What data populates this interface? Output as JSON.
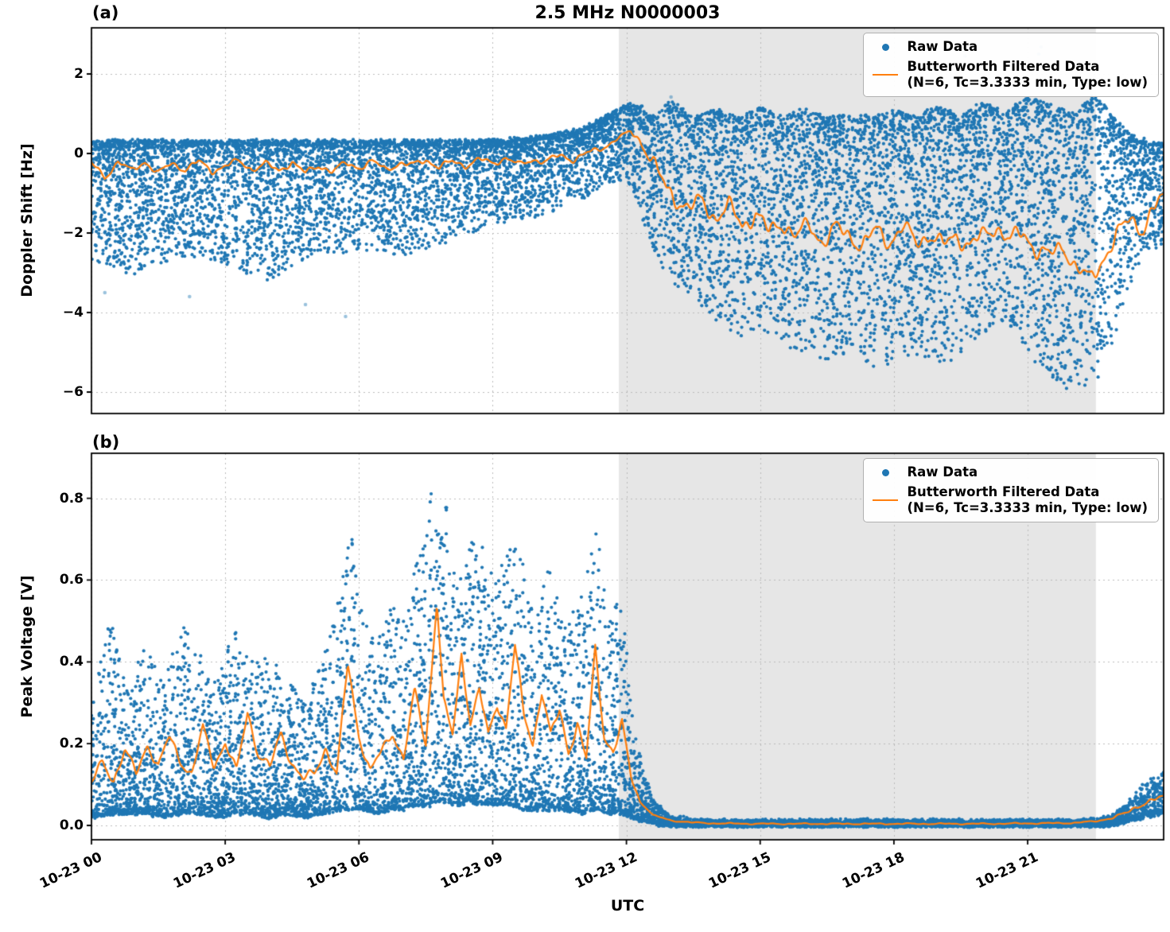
{
  "figure": {
    "title": "2.5 MHz N0000003",
    "panel_a_label": "(a)",
    "panel_b_label": "(b)",
    "panel_a_ylabel": "Doppler Shift [Hz]",
    "panel_b_ylabel": "Peak Voltage [V]",
    "xlabel": "UTC"
  },
  "legend": {
    "raw_label": "Raw Data",
    "filtered_line1": "Butterworth Filtered Data",
    "filtered_line2": "(N=6, Tc=3.3333 min, Type: low)"
  },
  "colors": {
    "raw": "#1f77b4",
    "filtered": "#ff7f0e",
    "shade": "#e6e6e6",
    "grid": "#bbbbbb",
    "spine": "#000000"
  },
  "chart_data": [
    {
      "id": "a",
      "type": "scatter",
      "title": "2.5 MHz N0000003",
      "ylabel": "Doppler Shift [Hz]",
      "xlabel": "UTC",
      "legend_entries": [
        "Raw Data",
        "Butterworth Filtered Data (N=6, Tc=3.3333 min, Type: low)"
      ],
      "xlim_hours": [
        0,
        24.05
      ],
      "ylim": [
        -6.54,
        3.16
      ],
      "grid": "dotted",
      "shade_hours": [
        11.83,
        22.53
      ],
      "xticks": [
        {
          "hour": 0,
          "label": "10-23 00"
        },
        {
          "hour": 3,
          "label": "10-23 03"
        },
        {
          "hour": 6,
          "label": "10-23 06"
        },
        {
          "hour": 9,
          "label": "10-23 09"
        },
        {
          "hour": 12,
          "label": "10-23 12"
        },
        {
          "hour": 15,
          "label": "10-23 15"
        },
        {
          "hour": 18,
          "label": "10-23 18"
        },
        {
          "hour": 21,
          "label": "10-23 21"
        }
      ],
      "yticks": [
        {
          "value": 2,
          "label": "2"
        },
        {
          "value": 0,
          "label": "0"
        },
        {
          "value": -2,
          "label": "−2"
        },
        {
          "value": -4,
          "label": "−4"
        },
        {
          "value": -6,
          "label": "−6"
        }
      ],
      "raw_envelope": {
        "t": [
          0,
          1,
          2,
          3,
          4,
          5,
          6,
          7,
          8,
          9,
          10,
          11,
          11.5,
          12.0,
          12.3,
          12.6,
          13.0,
          13.5,
          14.0,
          14.5,
          15.0,
          15.5,
          16.0,
          16.5,
          17.0,
          17.5,
          18.0,
          18.5,
          19.0,
          19.5,
          20.0,
          20.5,
          21.0,
          21.5,
          22.0,
          22.5,
          23.0,
          23.4,
          23.7,
          24.05
        ],
        "hi": [
          0.3,
          0.3,
          0.3,
          0.3,
          0.3,
          0.3,
          0.3,
          0.3,
          0.3,
          0.3,
          0.4,
          0.6,
          0.9,
          1.2,
          1.2,
          0.9,
          1.3,
          0.9,
          1.1,
          0.9,
          1.2,
          0.9,
          1.1,
          0.9,
          1.0,
          0.9,
          1.1,
          0.9,
          1.2,
          0.9,
          1.3,
          1.0,
          1.4,
          1.2,
          1.0,
          1.5,
          0.8,
          0.4,
          0.3,
          0.2
        ],
        "lo": [
          -2.8,
          -3.0,
          -2.6,
          -2.8,
          -3.2,
          -2.6,
          -2.4,
          -2.6,
          -2.2,
          -1.8,
          -1.6,
          -1.2,
          -0.8,
          -0.6,
          -1.5,
          -2.5,
          -3.2,
          -3.6,
          -4.2,
          -4.6,
          -4.4,
          -4.8,
          -5.0,
          -5.2,
          -5.0,
          -5.4,
          -5.2,
          -5.0,
          -5.3,
          -5.1,
          -4.6,
          -4.2,
          -5.0,
          -5.6,
          -6.0,
          -5.8,
          -4.5,
          -3.0,
          -2.5,
          -2.2
        ]
      },
      "scatter": {
        "n": 11000,
        "seed": 1337,
        "dense_edge": "hi",
        "skew_day": 2.0,
        "skew_night": 1.55,
        "skew_change_hour": 11.6,
        "jitter": 0.12
      },
      "outliers": [
        [
          5.7,
          -4.1
        ],
        [
          2.2,
          -3.6
        ],
        [
          4.8,
          -3.8
        ],
        [
          0.3,
          -3.5
        ],
        [
          13.0,
          1.42
        ],
        [
          19.55,
          2.62
        ],
        [
          19.6,
          2.45
        ],
        [
          21.3,
          2.68
        ],
        [
          21.25,
          2.5
        ]
      ],
      "filtered": {
        "t": [
          0,
          0.3,
          0.6,
          0.9,
          1.2,
          1.5,
          1.8,
          2.1,
          2.4,
          2.7,
          3.0,
          3.3,
          3.6,
          3.9,
          4.2,
          4.5,
          4.8,
          5.1,
          5.4,
          5.7,
          6.0,
          6.3,
          6.6,
          6.9,
          7.2,
          7.5,
          7.8,
          8.1,
          8.4,
          8.7,
          9.0,
          9.3,
          9.6,
          9.9,
          10.2,
          10.5,
          10.8,
          11.1,
          11.4,
          11.7,
          11.9,
          12.1,
          12.3,
          12.5,
          12.7,
          12.9,
          13.1,
          13.4,
          13.7,
          14.0,
          14.3,
          14.6,
          14.9,
          15.2,
          15.5,
          15.8,
          16.1,
          16.4,
          16.7,
          17.0,
          17.3,
          17.6,
          17.9,
          18.2,
          18.5,
          18.8,
          19.1,
          19.4,
          19.7,
          20.0,
          20.3,
          20.6,
          20.9,
          21.2,
          21.5,
          21.8,
          22.1,
          22.4,
          22.7,
          23.0,
          23.3,
          23.6,
          23.9,
          24.05
        ],
        "y": [
          -0.25,
          -0.6,
          -0.2,
          -0.45,
          -0.2,
          -0.5,
          -0.25,
          -0.4,
          -0.2,
          -0.45,
          -0.3,
          -0.2,
          -0.4,
          -0.25,
          -0.45,
          -0.2,
          -0.5,
          -0.3,
          -0.45,
          -0.25,
          -0.35,
          -0.2,
          -0.4,
          -0.25,
          -0.3,
          -0.15,
          -0.35,
          -0.2,
          -0.3,
          -0.15,
          -0.25,
          -0.1,
          -0.3,
          -0.15,
          -0.2,
          -0.05,
          -0.15,
          0.0,
          0.1,
          0.3,
          0.45,
          0.55,
          0.35,
          0.0,
          -0.5,
          -0.9,
          -1.1,
          -1.4,
          -1.2,
          -1.6,
          -1.35,
          -1.8,
          -1.5,
          -2.0,
          -1.7,
          -2.1,
          -1.8,
          -2.2,
          -1.9,
          -2.05,
          -2.3,
          -1.95,
          -2.2,
          -1.85,
          -2.25,
          -2.0,
          -2.35,
          -2.05,
          -2.3,
          -2.1,
          -1.8,
          -2.2,
          -2.0,
          -2.4,
          -2.6,
          -2.3,
          -2.9,
          -3.2,
          -2.6,
          -2.1,
          -1.6,
          -1.9,
          -1.3,
          -1.1
        ]
      },
      "noise_amp": {
        "t": [
          0,
          11.2,
          12.0,
          12.6,
          24.05
        ],
        "amp": [
          0.1,
          0.1,
          0.05,
          0.3,
          0.3
        ]
      }
    },
    {
      "id": "b",
      "type": "scatter",
      "ylabel": "Peak Voltage [V]",
      "xlabel": "UTC",
      "legend_entries": [
        "Raw Data",
        "Butterworth Filtered Data (N=6, Tc=3.3333 min, Type: low)"
      ],
      "xlim_hours": [
        0,
        24.05
      ],
      "ylim": [
        -0.035,
        0.91
      ],
      "grid": "dotted",
      "shade_hours": [
        11.83,
        22.53
      ],
      "xticks": [
        {
          "hour": 0,
          "label": "10-23 00"
        },
        {
          "hour": 3,
          "label": "10-23 03"
        },
        {
          "hour": 6,
          "label": "10-23 06"
        },
        {
          "hour": 9,
          "label": "10-23 09"
        },
        {
          "hour": 12,
          "label": "10-23 12"
        },
        {
          "hour": 15,
          "label": "10-23 15"
        },
        {
          "hour": 18,
          "label": "10-23 18"
        },
        {
          "hour": 21,
          "label": "10-23 21"
        }
      ],
      "yticks": [
        {
          "value": 0.8,
          "label": "0.8"
        },
        {
          "value": 0.6,
          "label": "0.6"
        },
        {
          "value": 0.4,
          "label": "0.4"
        },
        {
          "value": 0.2,
          "label": "0.2"
        },
        {
          "value": 0.0,
          "label": "0.0"
        }
      ],
      "raw_envelope": {
        "t": [
          0,
          0.4,
          0.8,
          1.2,
          1.6,
          2.0,
          2.4,
          2.8,
          3.2,
          3.6,
          4.0,
          4.4,
          4.8,
          5.2,
          5.6,
          5.8,
          6.1,
          6.4,
          6.7,
          7.0,
          7.3,
          7.6,
          7.9,
          8.2,
          8.5,
          8.8,
          9.1,
          9.4,
          9.7,
          10.0,
          10.3,
          10.6,
          11.0,
          11.3,
          11.6,
          11.9,
          12.1,
          12.4,
          12.7,
          13.0,
          14,
          16,
          18,
          20,
          22,
          22.8,
          23.2,
          23.6,
          24.05
        ],
        "hi": [
          0.28,
          0.52,
          0.33,
          0.45,
          0.35,
          0.5,
          0.42,
          0.35,
          0.48,
          0.4,
          0.42,
          0.35,
          0.3,
          0.42,
          0.6,
          0.76,
          0.5,
          0.45,
          0.55,
          0.5,
          0.65,
          0.81,
          0.85,
          0.6,
          0.7,
          0.68,
          0.6,
          0.75,
          0.63,
          0.55,
          0.66,
          0.5,
          0.58,
          0.75,
          0.5,
          0.57,
          0.3,
          0.12,
          0.05,
          0.02,
          0.012,
          0.012,
          0.012,
          0.012,
          0.012,
          0.02,
          0.05,
          0.1,
          0.13
        ],
        "lo": [
          0.02,
          0.03,
          0.03,
          0.03,
          0.02,
          0.03,
          0.03,
          0.02,
          0.03,
          0.03,
          0.02,
          0.03,
          0.02,
          0.03,
          0.04,
          0.04,
          0.04,
          0.03,
          0.04,
          0.04,
          0.05,
          0.05,
          0.06,
          0.05,
          0.06,
          0.05,
          0.05,
          0.05,
          0.04,
          0.04,
          0.04,
          0.04,
          0.03,
          0.04,
          0.03,
          0.03,
          0.02,
          0.01,
          0.003,
          0.0,
          0.0,
          0.0,
          0.0,
          0.0,
          0.0,
          0.0,
          0.01,
          0.02,
          0.03
        ]
      },
      "scatter": {
        "n": 10000,
        "seed": 777,
        "dense_edge": "lo",
        "skew_day": 2.3,
        "skew_night": 1.8,
        "skew_change_hour": 12.4,
        "jitter": 0.01
      },
      "outliers": [],
      "filtered": {
        "t": [
          0,
          0.25,
          0.5,
          0.75,
          1.0,
          1.25,
          1.5,
          1.75,
          2.0,
          2.25,
          2.5,
          2.75,
          3.0,
          3.25,
          3.5,
          3.75,
          4.0,
          4.25,
          4.5,
          4.75,
          5.0,
          5.25,
          5.5,
          5.75,
          6.0,
          6.25,
          6.5,
          6.75,
          7.0,
          7.25,
          7.5,
          7.75,
          7.9,
          8.1,
          8.3,
          8.5,
          8.7,
          8.9,
          9.1,
          9.3,
          9.5,
          9.7,
          9.9,
          10.1,
          10.3,
          10.5,
          10.7,
          10.9,
          11.1,
          11.3,
          11.5,
          11.7,
          11.9,
          12.1,
          12.3,
          12.6,
          13.0,
          13.5,
          14.0,
          15.0,
          16.0,
          17.0,
          18.0,
          19.0,
          20.0,
          21.0,
          22.0,
          22.5,
          22.9,
          23.2,
          23.5,
          23.8,
          24.05
        ],
        "y": [
          0.1,
          0.16,
          0.11,
          0.18,
          0.13,
          0.2,
          0.14,
          0.22,
          0.16,
          0.12,
          0.24,
          0.15,
          0.2,
          0.13,
          0.28,
          0.17,
          0.14,
          0.23,
          0.15,
          0.11,
          0.13,
          0.19,
          0.12,
          0.4,
          0.22,
          0.13,
          0.18,
          0.23,
          0.16,
          0.33,
          0.2,
          0.55,
          0.3,
          0.22,
          0.42,
          0.25,
          0.33,
          0.22,
          0.3,
          0.24,
          0.44,
          0.27,
          0.2,
          0.33,
          0.22,
          0.28,
          0.18,
          0.25,
          0.16,
          0.43,
          0.22,
          0.18,
          0.25,
          0.12,
          0.06,
          0.025,
          0.012,
          0.007,
          0.005,
          0.004,
          0.004,
          0.004,
          0.004,
          0.004,
          0.004,
          0.005,
          0.006,
          0.01,
          0.018,
          0.03,
          0.05,
          0.06,
          0.07
        ]
      },
      "noise_amp": {
        "t": [
          0,
          11.9,
          12.5,
          22.8,
          23.3,
          24.05
        ],
        "amp": [
          0.016,
          0.016,
          0.002,
          0.002,
          0.007,
          0.009
        ]
      }
    }
  ]
}
